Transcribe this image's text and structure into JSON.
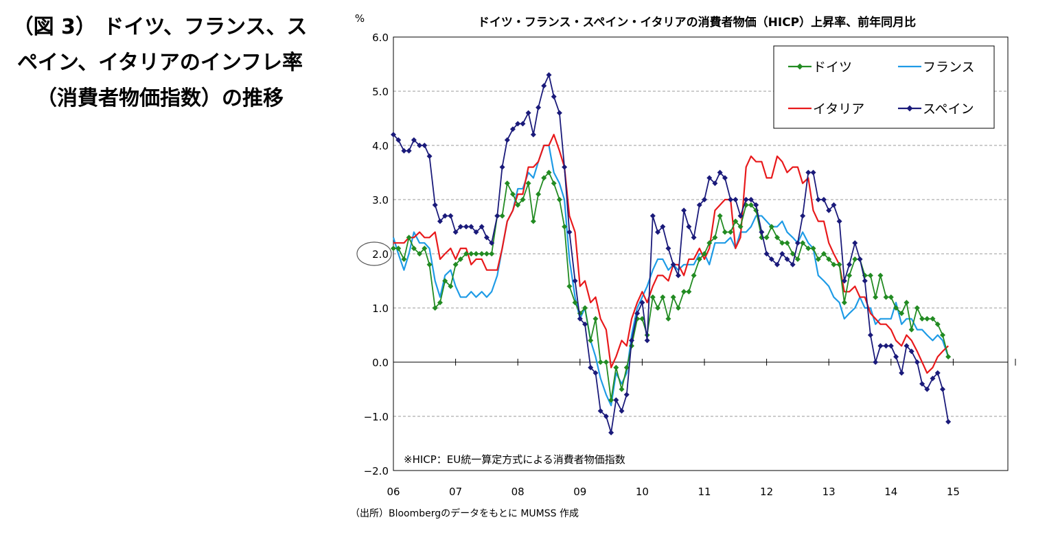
{
  "caption": "（図 3） ドイツ、フランス、スペイン、イタリアのインフレ率（消費者物価指数）の推移",
  "source": "（出所）Bloombergのデータをもとに MUMSS 作成",
  "chart_data": {
    "type": "line",
    "title": "ドイツ・フランス・スペイン・イタリアの消費者物価（HICP）上昇率、前年同月比",
    "ylabel": "%",
    "xlabel": "",
    "ylim": [
      -2.0,
      6.0
    ],
    "yticks": [
      "6.0",
      "5.0",
      "4.0",
      "3.0",
      "2.0",
      "1.0",
      "0.0",
      "−1.0",
      "−2.0"
    ],
    "xticks": [
      "06",
      "07",
      "08",
      "09",
      "10",
      "11",
      "12",
      "13",
      "14",
      "15"
    ],
    "grid": true,
    "legend": "top-right",
    "annotation": "※HICP：EU統一算定方式による消費者物価指数",
    "highlight_value": 2.0,
    "x_start_year": 2006,
    "series": [
      {
        "name": "ドイツ",
        "color": "#228B22",
        "marker": "diamond",
        "x": [
          2006.0,
          2006.08,
          2006.17,
          2006.25,
          2006.33,
          2006.42,
          2006.5,
          2006.58,
          2006.67,
          2006.75,
          2006.83,
          2006.92,
          2007.0,
          2007.08,
          2007.17,
          2007.25,
          2007.33,
          2007.42,
          2007.5,
          2007.58,
          2007.67,
          2007.75,
          2007.83,
          2007.92,
          2008.0,
          2008.08,
          2008.17,
          2008.25,
          2008.33,
          2008.42,
          2008.5,
          2008.58,
          2008.67,
          2008.75,
          2008.83,
          2008.92,
          2009.0,
          2009.08,
          2009.17,
          2009.25,
          2009.33,
          2009.42,
          2009.5,
          2009.58,
          2009.67,
          2009.75,
          2009.83,
          2009.92,
          2010.0,
          2010.08,
          2010.17,
          2010.25,
          2010.33,
          2010.42,
          2010.5,
          2010.58,
          2010.67,
          2010.75,
          2010.83,
          2010.92,
          2011.0,
          2011.08,
          2011.17,
          2011.25,
          2011.33,
          2011.42,
          2011.5,
          2011.58,
          2011.67,
          2011.75,
          2011.83,
          2011.92,
          2012.0,
          2012.08,
          2012.17,
          2012.25,
          2012.33,
          2012.42,
          2012.5,
          2012.58,
          2012.67,
          2012.75,
          2012.83,
          2012.92,
          2013.0,
          2013.08,
          2013.17,
          2013.25,
          2013.33,
          2013.42,
          2013.5,
          2013.58,
          2013.67,
          2013.75,
          2013.83,
          2013.92,
          2014.0,
          2014.08,
          2014.17,
          2014.25,
          2014.33,
          2014.42,
          2014.5,
          2014.58,
          2014.67,
          2014.75,
          2014.83,
          2014.92
        ],
        "values": [
          2.1,
          2.1,
          1.9,
          2.3,
          2.1,
          2.0,
          2.1,
          1.8,
          1.0,
          1.1,
          1.5,
          1.4,
          1.8,
          1.9,
          2.0,
          2.0,
          2.0,
          2.0,
          2.0,
          2.0,
          2.7,
          2.7,
          3.3,
          3.1,
          2.9,
          3.0,
          3.3,
          2.6,
          3.1,
          3.4,
          3.5,
          3.3,
          3.0,
          2.5,
          1.4,
          1.1,
          0.9,
          1.0,
          0.4,
          0.8,
          0.0,
          0.0,
          -0.7,
          -0.1,
          -0.5,
          -0.1,
          0.3,
          0.8,
          0.8,
          0.5,
          1.2,
          1.0,
          1.2,
          0.8,
          1.2,
          1.0,
          1.3,
          1.3,
          1.6,
          1.9,
          2.0,
          2.2,
          2.3,
          2.7,
          2.4,
          2.4,
          2.6,
          2.5,
          2.9,
          2.9,
          2.8,
          2.3,
          2.3,
          2.5,
          2.3,
          2.2,
          2.2,
          2.0,
          1.9,
          2.2,
          2.1,
          2.1,
          1.9,
          2.0,
          1.9,
          1.8,
          1.8,
          1.1,
          1.6,
          1.9,
          1.9,
          1.6,
          1.6,
          1.2,
          1.6,
          1.2,
          1.2,
          1.0,
          0.9,
          1.1,
          0.6,
          1.0,
          0.8,
          0.8,
          0.8,
          0.7,
          0.5,
          0.1
        ]
      },
      {
        "name": "フランス",
        "color": "#1E9BE6",
        "marker": "none",
        "x": [
          2006.0,
          2006.08,
          2006.17,
          2006.25,
          2006.33,
          2006.42,
          2006.5,
          2006.58,
          2006.67,
          2006.75,
          2006.83,
          2006.92,
          2007.0,
          2007.08,
          2007.17,
          2007.25,
          2007.33,
          2007.42,
          2007.5,
          2007.58,
          2007.67,
          2007.75,
          2007.83,
          2007.92,
          2008.0,
          2008.08,
          2008.17,
          2008.25,
          2008.33,
          2008.42,
          2008.5,
          2008.58,
          2008.67,
          2008.75,
          2008.83,
          2008.92,
          2009.0,
          2009.08,
          2009.17,
          2009.25,
          2009.33,
          2009.42,
          2009.5,
          2009.58,
          2009.67,
          2009.75,
          2009.83,
          2009.92,
          2010.0,
          2010.08,
          2010.17,
          2010.25,
          2010.33,
          2010.42,
          2010.5,
          2010.58,
          2010.67,
          2010.75,
          2010.83,
          2010.92,
          2011.0,
          2011.08,
          2011.17,
          2011.25,
          2011.33,
          2011.42,
          2011.5,
          2011.58,
          2011.67,
          2011.75,
          2011.83,
          2011.92,
          2012.0,
          2012.08,
          2012.17,
          2012.25,
          2012.33,
          2012.42,
          2012.5,
          2012.58,
          2012.67,
          2012.75,
          2012.83,
          2012.92,
          2013.0,
          2013.08,
          2013.17,
          2013.25,
          2013.33,
          2013.42,
          2013.5,
          2013.58,
          2013.67,
          2013.75,
          2013.83,
          2013.92,
          2014.0,
          2014.08,
          2014.17,
          2014.25,
          2014.33,
          2014.42,
          2014.5,
          2014.58,
          2014.67,
          2014.75,
          2014.83,
          2014.92
        ],
        "values": [
          2.3,
          2.0,
          1.7,
          2.0,
          2.4,
          2.2,
          2.2,
          2.1,
          1.5,
          1.2,
          1.6,
          1.7,
          1.4,
          1.2,
          1.2,
          1.3,
          1.2,
          1.3,
          1.2,
          1.3,
          1.6,
          2.1,
          2.6,
          2.8,
          3.2,
          3.2,
          3.5,
          3.4,
          3.7,
          4.0,
          4.0,
          3.5,
          3.3,
          3.0,
          1.9,
          1.2,
          0.8,
          1.0,
          0.4,
          0.1,
          -0.3,
          -0.6,
          -0.8,
          -0.2,
          -0.4,
          -0.2,
          0.5,
          1.0,
          1.2,
          1.4,
          1.7,
          1.9,
          1.9,
          1.7,
          1.8,
          1.7,
          1.8,
          1.8,
          1.8,
          2.0,
          2.0,
          1.8,
          2.2,
          2.2,
          2.2,
          2.3,
          2.1,
          2.4,
          2.4,
          2.5,
          2.7,
          2.7,
          2.6,
          2.5,
          2.5,
          2.6,
          2.4,
          2.3,
          2.2,
          2.4,
          2.2,
          2.1,
          1.6,
          1.5,
          1.4,
          1.2,
          1.1,
          0.8,
          0.9,
          1.0,
          1.2,
          1.0,
          1.0,
          0.7,
          0.8,
          0.8,
          0.8,
          1.1,
          0.7,
          0.8,
          0.8,
          0.6,
          0.6,
          0.5,
          0.4,
          0.5,
          0.4,
          0.1
        ]
      },
      {
        "name": "イタリア",
        "color": "#E8191B",
        "marker": "none",
        "x": [
          2006.0,
          2006.08,
          2006.17,
          2006.25,
          2006.33,
          2006.42,
          2006.5,
          2006.58,
          2006.67,
          2006.75,
          2006.83,
          2006.92,
          2007.0,
          2007.08,
          2007.17,
          2007.25,
          2007.33,
          2007.42,
          2007.5,
          2007.58,
          2007.67,
          2007.75,
          2007.83,
          2007.92,
          2008.0,
          2008.08,
          2008.17,
          2008.25,
          2008.33,
          2008.42,
          2008.5,
          2008.58,
          2008.67,
          2008.75,
          2008.83,
          2008.92,
          2009.0,
          2009.08,
          2009.17,
          2009.25,
          2009.33,
          2009.42,
          2009.5,
          2009.58,
          2009.67,
          2009.75,
          2009.83,
          2009.92,
          2010.0,
          2010.08,
          2010.17,
          2010.25,
          2010.33,
          2010.42,
          2010.5,
          2010.58,
          2010.67,
          2010.75,
          2010.83,
          2010.92,
          2011.0,
          2011.08,
          2011.17,
          2011.25,
          2011.33,
          2011.42,
          2011.5,
          2011.58,
          2011.67,
          2011.75,
          2011.83,
          2011.92,
          2012.0,
          2012.08,
          2012.17,
          2012.25,
          2012.33,
          2012.42,
          2012.5,
          2012.58,
          2012.67,
          2012.75,
          2012.83,
          2012.92,
          2013.0,
          2013.08,
          2013.17,
          2013.25,
          2013.33,
          2013.42,
          2013.5,
          2013.58,
          2013.67,
          2013.75,
          2013.83,
          2013.92,
          2014.0,
          2014.08,
          2014.17,
          2014.25,
          2014.33,
          2014.42,
          2014.5,
          2014.58,
          2014.67,
          2014.75,
          2014.83,
          2014.92
        ],
        "values": [
          2.2,
          2.2,
          2.2,
          2.3,
          2.3,
          2.4,
          2.3,
          2.3,
          2.4,
          1.9,
          2.0,
          2.1,
          1.9,
          2.1,
          2.1,
          1.8,
          1.9,
          1.9,
          1.7,
          1.7,
          1.7,
          2.1,
          2.6,
          2.8,
          3.1,
          3.1,
          3.6,
          3.6,
          3.7,
          4.0,
          4.0,
          4.2,
          3.9,
          3.6,
          2.7,
          2.4,
          1.4,
          1.5,
          1.1,
          1.2,
          0.8,
          0.6,
          -0.1,
          0.1,
          0.4,
          0.3,
          0.8,
          1.1,
          1.3,
          1.1,
          1.4,
          1.6,
          1.6,
          1.5,
          1.8,
          1.8,
          1.6,
          1.9,
          1.9,
          2.1,
          1.9,
          2.1,
          2.8,
          2.9,
          3.0,
          3.0,
          2.1,
          2.3,
          3.6,
          3.8,
          3.7,
          3.7,
          3.4,
          3.4,
          3.8,
          3.7,
          3.5,
          3.6,
          3.6,
          3.3,
          3.4,
          2.8,
          2.6,
          2.6,
          2.2,
          2.0,
          1.8,
          1.3,
          1.3,
          1.4,
          1.2,
          1.2,
          0.9,
          0.8,
          0.7,
          0.7,
          0.6,
          0.4,
          0.3,
          0.5,
          0.4,
          0.2,
          0.0,
          -0.2,
          -0.1,
          0.1,
          0.2,
          0.3
        ]
      },
      {
        "name": "スペイン",
        "color": "#1A1A7A",
        "marker": "diamond",
        "x": [
          2006.0,
          2006.08,
          2006.17,
          2006.25,
          2006.33,
          2006.42,
          2006.5,
          2006.58,
          2006.67,
          2006.75,
          2006.83,
          2006.92,
          2007.0,
          2007.08,
          2007.17,
          2007.25,
          2007.33,
          2007.42,
          2007.5,
          2007.58,
          2007.67,
          2007.75,
          2007.83,
          2007.92,
          2008.0,
          2008.08,
          2008.17,
          2008.25,
          2008.33,
          2008.42,
          2008.5,
          2008.58,
          2008.67,
          2008.75,
          2008.83,
          2008.92,
          2009.0,
          2009.08,
          2009.17,
          2009.25,
          2009.33,
          2009.42,
          2009.5,
          2009.58,
          2009.67,
          2009.75,
          2009.83,
          2009.92,
          2010.0,
          2010.08,
          2010.17,
          2010.25,
          2010.33,
          2010.42,
          2010.5,
          2010.58,
          2010.67,
          2010.75,
          2010.83,
          2010.92,
          2011.0,
          2011.08,
          2011.17,
          2011.25,
          2011.33,
          2011.42,
          2011.5,
          2011.58,
          2011.67,
          2011.75,
          2011.83,
          2011.92,
          2012.0,
          2012.08,
          2012.17,
          2012.25,
          2012.33,
          2012.42,
          2012.5,
          2012.58,
          2012.67,
          2012.75,
          2012.83,
          2012.92,
          2013.0,
          2013.08,
          2013.17,
          2013.25,
          2013.33,
          2013.42,
          2013.5,
          2013.58,
          2013.67,
          2013.75,
          2013.83,
          2013.92,
          2014.0,
          2014.08,
          2014.17,
          2014.25,
          2014.33,
          2014.42,
          2014.5,
          2014.58,
          2014.67,
          2014.75,
          2014.83,
          2014.92
        ],
        "values": [
          4.2,
          4.1,
          3.9,
          3.9,
          4.1,
          4.0,
          4.0,
          3.8,
          2.9,
          2.6,
          2.7,
          2.7,
          2.4,
          2.5,
          2.5,
          2.5,
          2.4,
          2.5,
          2.3,
          2.2,
          2.7,
          3.6,
          4.1,
          4.3,
          4.4,
          4.4,
          4.6,
          4.2,
          4.7,
          5.1,
          5.3,
          4.9,
          4.6,
          3.6,
          2.4,
          1.5,
          0.8,
          0.7,
          -0.1,
          -0.2,
          -0.9,
          -1.0,
          -1.3,
          -0.7,
          -0.9,
          -0.6,
          0.4,
          0.9,
          1.1,
          0.4,
          2.7,
          2.4,
          2.5,
          2.1,
          1.8,
          1.6,
          2.8,
          2.5,
          2.3,
          2.9,
          3.0,
          3.4,
          3.3,
          3.5,
          3.4,
          3.0,
          3.0,
          2.7,
          3.0,
          3.0,
          2.9,
          2.4,
          2.0,
          1.9,
          1.8,
          2.0,
          1.9,
          1.8,
          2.2,
          2.7,
          3.5,
          3.5,
          3.0,
          3.0,
          2.8,
          2.9,
          2.6,
          1.5,
          1.8,
          2.2,
          1.9,
          1.5,
          0.5,
          0.0,
          0.3,
          0.3,
          0.3,
          0.1,
          -0.2,
          0.3,
          0.2,
          0.0,
          -0.4,
          -0.5,
          -0.3,
          -0.2,
          -0.5,
          -1.1
        ]
      }
    ]
  }
}
